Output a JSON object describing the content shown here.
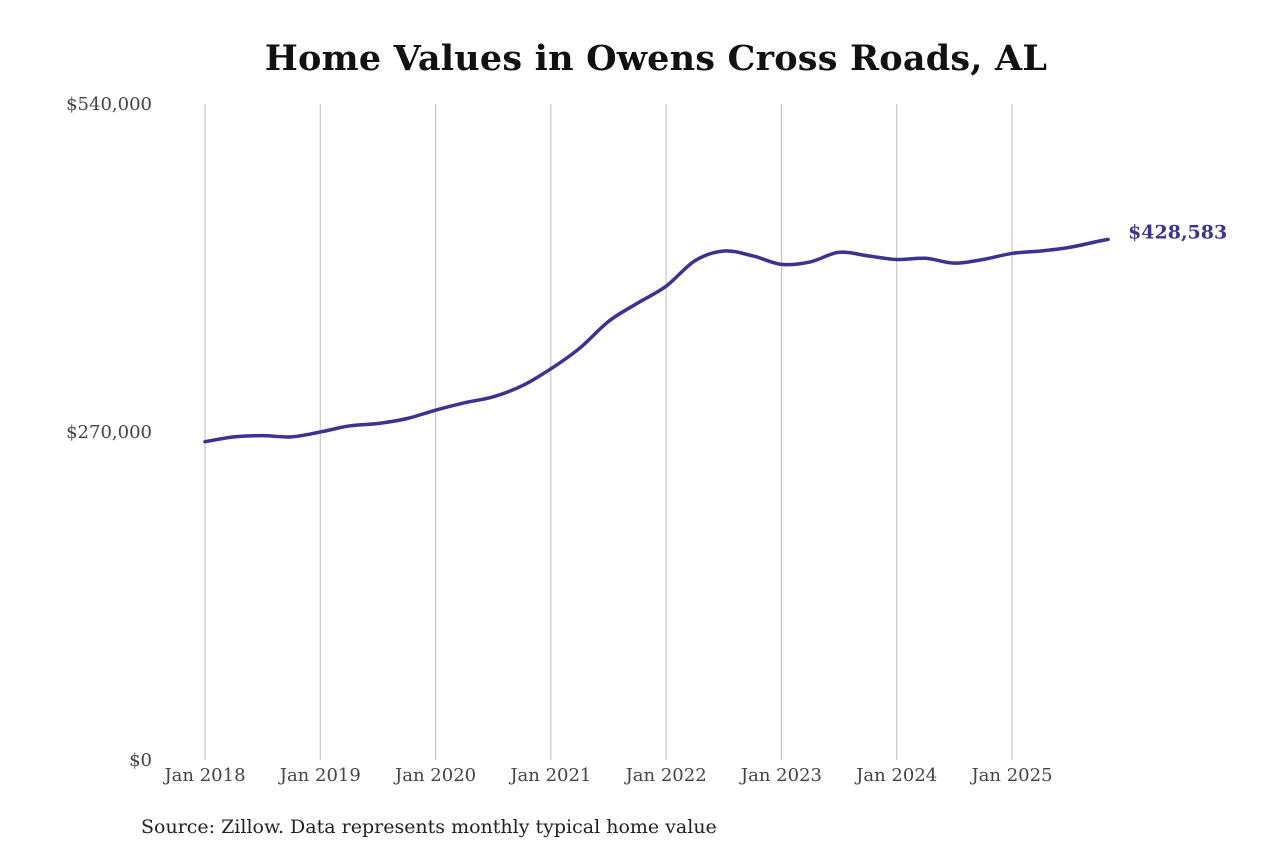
{
  "chart_data": {
    "type": "line",
    "title": "Home Values in Owens Cross Roads, AL",
    "xlabel": "",
    "ylabel": "",
    "source_note": "Source: Zillow. Data represents monthly typical home value",
    "ylim": [
      0,
      540000
    ],
    "y_ticks": [
      {
        "value": 0,
        "label": "$0"
      },
      {
        "value": 270000,
        "label": "$270,000"
      },
      {
        "value": 540000,
        "label": "$540,000"
      }
    ],
    "x_range": [
      "2018-01",
      "2025-11"
    ],
    "x_ticks": [
      {
        "date": "2018-01",
        "label": "Jan 2018"
      },
      {
        "date": "2019-01",
        "label": "Jan 2019"
      },
      {
        "date": "2020-01",
        "label": "Jan 2020"
      },
      {
        "date": "2021-01",
        "label": "Jan 2021"
      },
      {
        "date": "2022-01",
        "label": "Jan 2022"
      },
      {
        "date": "2023-01",
        "label": "Jan 2023"
      },
      {
        "date": "2024-01",
        "label": "Jan 2024"
      },
      {
        "date": "2025-01",
        "label": "Jan 2025"
      }
    ],
    "grid": "vertical lines at year ticks",
    "colors": {
      "line": "#3b3391",
      "grid": "#bdbdbd",
      "axis_text": "#444444"
    },
    "series": [
      {
        "end_label": "$428,583",
        "points": [
          {
            "x": "2018-01",
            "y": 262000
          },
          {
            "x": "2018-04",
            "y": 266000
          },
          {
            "x": "2018-07",
            "y": 267000
          },
          {
            "x": "2018-10",
            "y": 266000
          },
          {
            "x": "2019-01",
            "y": 270000
          },
          {
            "x": "2019-04",
            "y": 275000
          },
          {
            "x": "2019-07",
            "y": 277000
          },
          {
            "x": "2019-10",
            "y": 281000
          },
          {
            "x": "2020-01",
            "y": 288000
          },
          {
            "x": "2020-04",
            "y": 294000
          },
          {
            "x": "2020-07",
            "y": 299000
          },
          {
            "x": "2020-10",
            "y": 308000
          },
          {
            "x": "2021-01",
            "y": 322000
          },
          {
            "x": "2021-04",
            "y": 339000
          },
          {
            "x": "2021-07",
            "y": 361000
          },
          {
            "x": "2021-10",
            "y": 376000
          },
          {
            "x": "2022-01",
            "y": 390000
          },
          {
            "x": "2022-04",
            "y": 411000
          },
          {
            "x": "2022-07",
            "y": 419000
          },
          {
            "x": "2022-10",
            "y": 415000
          },
          {
            "x": "2023-01",
            "y": 408000
          },
          {
            "x": "2023-04",
            "y": 410000
          },
          {
            "x": "2023-07",
            "y": 418000
          },
          {
            "x": "2023-10",
            "y": 415000
          },
          {
            "x": "2024-01",
            "y": 412000
          },
          {
            "x": "2024-04",
            "y": 413000
          },
          {
            "x": "2024-07",
            "y": 409000
          },
          {
            "x": "2024-10",
            "y": 412000
          },
          {
            "x": "2025-01",
            "y": 417000
          },
          {
            "x": "2025-04",
            "y": 419000
          },
          {
            "x": "2025-07",
            "y": 422000
          },
          {
            "x": "2025-10",
            "y": 427000
          },
          {
            "x": "2025-11",
            "y": 428583
          }
        ]
      }
    ]
  }
}
